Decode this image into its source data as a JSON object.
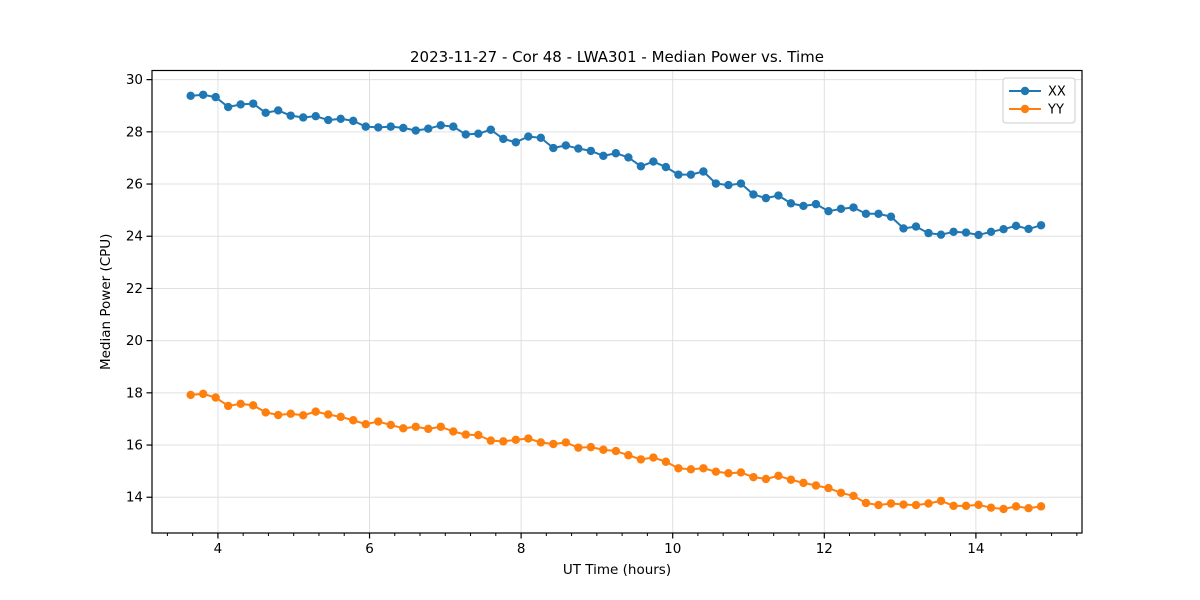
{
  "figure": {
    "background": "#ffffff"
  },
  "chart_data": {
    "type": "line",
    "title": "2023-11-27 - Cor 48 - LWA301 - Median Power vs. Time",
    "xlabel": "UT Time (hours)",
    "ylabel": "Median Power (CPU)",
    "xlim": [
      3.13,
      15.4
    ],
    "ylim": [
      12.63,
      30.35
    ],
    "xticks": [
      4,
      6,
      8,
      10,
      12,
      14
    ],
    "yticks": [
      14,
      16,
      18,
      20,
      22,
      24,
      26,
      28,
      30
    ],
    "x_minor_tick_step": 0.3333,
    "grid": true,
    "grid_color": "#e0e0e0",
    "spine_color": "#000000",
    "legend_position": "upper right",
    "marker": "circle",
    "x": [
      3.64,
      3.805,
      3.97,
      4.135,
      4.3,
      4.465,
      4.63,
      4.795,
      4.96,
      5.125,
      5.29,
      5.455,
      5.62,
      5.785,
      5.95,
      6.115,
      6.28,
      6.445,
      6.61,
      6.775,
      6.94,
      7.105,
      7.27,
      7.435,
      7.6,
      7.765,
      7.93,
      8.095,
      8.26,
      8.425,
      8.59,
      8.755,
      8.92,
      9.085,
      9.25,
      9.415,
      9.58,
      9.745,
      9.91,
      10.075,
      10.24,
      10.405,
      10.57,
      10.735,
      10.9,
      11.065,
      11.23,
      11.395,
      11.56,
      11.725,
      11.89,
      12.055,
      12.22,
      12.385,
      12.55,
      12.715,
      12.88,
      13.045,
      13.21,
      13.375,
      13.54,
      13.705,
      13.87,
      14.035,
      14.2,
      14.365,
      14.53,
      14.695,
      14.86
    ],
    "series": [
      {
        "name": "XX",
        "color": "#1f77b4",
        "values": [
          29.38,
          29.42,
          29.33,
          28.95,
          29.05,
          29.08,
          28.73,
          28.82,
          28.62,
          28.55,
          28.6,
          28.45,
          28.5,
          28.42,
          28.2,
          28.17,
          28.2,
          28.15,
          28.05,
          28.12,
          28.25,
          28.2,
          27.9,
          27.93,
          28.08,
          27.73,
          27.6,
          27.82,
          27.77,
          27.38,
          27.48,
          27.36,
          27.27,
          27.08,
          27.18,
          27.02,
          26.68,
          26.86,
          26.65,
          26.36,
          26.36,
          26.48,
          26.02,
          25.96,
          26.02,
          25.6,
          25.46,
          25.56,
          25.26,
          25.16,
          25.23,
          24.96,
          25.05,
          25.1,
          24.86,
          24.86,
          24.75,
          24.3,
          24.37,
          24.12,
          24.06,
          24.17,
          24.14,
          24.05,
          24.17,
          24.27,
          24.4,
          24.28,
          24.42
        ]
      },
      {
        "name": "YY",
        "color": "#ff7f0e",
        "values": [
          17.92,
          17.96,
          17.82,
          17.5,
          17.58,
          17.52,
          17.25,
          17.15,
          17.2,
          17.14,
          17.28,
          17.17,
          17.08,
          16.95,
          16.8,
          16.9,
          16.77,
          16.64,
          16.7,
          16.62,
          16.7,
          16.52,
          16.4,
          16.38,
          16.17,
          16.14,
          16.2,
          16.25,
          16.1,
          16.04,
          16.1,
          15.9,
          15.92,
          15.82,
          15.77,
          15.61,
          15.45,
          15.52,
          15.36,
          15.11,
          15.07,
          15.11,
          14.98,
          14.92,
          14.95,
          14.77,
          14.7,
          14.82,
          14.67,
          14.55,
          14.45,
          14.35,
          14.17,
          14.05,
          13.78,
          13.7,
          13.76,
          13.72,
          13.7,
          13.76,
          13.86,
          13.67,
          13.67,
          13.71,
          13.6,
          13.55,
          13.65,
          13.58,
          13.65
        ]
      }
    ]
  }
}
